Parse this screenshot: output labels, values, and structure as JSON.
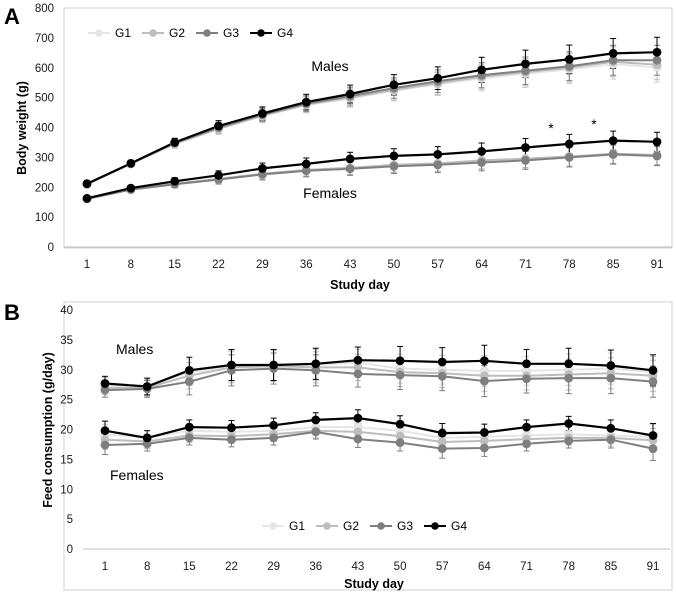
{
  "chart_data": [
    {
      "type": "line",
      "panel_label": "A",
      "ylabel": "Body weight (g)",
      "xlabel": "Study day",
      "ylim": [
        0,
        800
      ],
      "yticks": [
        0,
        100,
        200,
        300,
        400,
        500,
        600,
        700,
        800
      ],
      "categories": [
        "1",
        "8",
        "15",
        "22",
        "29",
        "36",
        "43",
        "50",
        "57",
        "64",
        "71",
        "78",
        "85",
        "91"
      ],
      "legend": {
        "placement": "top-left",
        "entries": [
          "G1",
          "G2",
          "G3",
          "G4"
        ]
      },
      "annotations": [
        {
          "text": "Males",
          "x": "50",
          "y": 600
        },
        {
          "text": "Females",
          "x": "43",
          "y": 180
        },
        {
          "text": "*",
          "x": "78",
          "y": 395
        },
        {
          "text": "*",
          "x": "85",
          "y": 405
        }
      ],
      "series": [
        {
          "name": "G1",
          "group": "Males",
          "color": "#e6e6e6",
          "values": [
            210,
            278,
            345,
            395,
            438,
            475,
            498,
            523,
            545,
            565,
            580,
            595,
            612,
            602
          ],
          "errors": [
            6,
            10,
            14,
            18,
            22,
            26,
            30,
            34,
            38,
            42,
            46,
            48,
            50,
            50
          ]
        },
        {
          "name": "G2",
          "group": "Males",
          "color": "#bdbdbd",
          "values": [
            210,
            278,
            345,
            396,
            440,
            477,
            500,
            526,
            548,
            570,
            585,
            600,
            620,
            610
          ],
          "errors": [
            6,
            10,
            14,
            18,
            22,
            26,
            30,
            34,
            38,
            42,
            46,
            48,
            50,
            50
          ]
        },
        {
          "name": "G3",
          "group": "Males",
          "color": "#7f7f7f",
          "values": [
            211,
            280,
            348,
            400,
            443,
            480,
            505,
            532,
            555,
            575,
            590,
            605,
            625,
            625
          ],
          "errors": [
            6,
            10,
            14,
            18,
            22,
            26,
            30,
            34,
            38,
            42,
            46,
            48,
            50,
            50
          ]
        },
        {
          "name": "G4",
          "group": "Males",
          "color": "#000000",
          "values": [
            212,
            280,
            350,
            405,
            447,
            485,
            512,
            543,
            565,
            593,
            613,
            628,
            648,
            652
          ],
          "errors": [
            6,
            10,
            14,
            18,
            22,
            26,
            30,
            34,
            38,
            42,
            46,
            48,
            50,
            50
          ]
        },
        {
          "name": "G1",
          "group": "Females",
          "color": "#e6e6e6",
          "values": [
            162,
            192,
            210,
            225,
            242,
            255,
            262,
            272,
            277,
            287,
            292,
            300,
            308,
            303
          ],
          "errors": [
            5,
            8,
            12,
            15,
            18,
            20,
            22,
            24,
            26,
            28,
            30,
            32,
            32,
            32
          ]
        },
        {
          "name": "G2",
          "group": "Females",
          "color": "#bdbdbd",
          "values": [
            162,
            193,
            212,
            228,
            245,
            258,
            265,
            275,
            280,
            290,
            296,
            303,
            312,
            308
          ],
          "errors": [
            5,
            8,
            12,
            15,
            18,
            20,
            22,
            24,
            26,
            28,
            30,
            32,
            32,
            32
          ]
        },
        {
          "name": "G3",
          "group": "Females",
          "color": "#7f7f7f",
          "values": [
            161,
            192,
            210,
            226,
            243,
            255,
            262,
            270,
            275,
            283,
            290,
            300,
            310,
            305
          ],
          "errors": [
            5,
            8,
            12,
            15,
            18,
            20,
            22,
            24,
            26,
            28,
            30,
            32,
            32,
            32
          ]
        },
        {
          "name": "G4",
          "group": "Females",
          "color": "#000000",
          "values": [
            163,
            197,
            220,
            240,
            263,
            278,
            295,
            305,
            310,
            320,
            333,
            345,
            356,
            352
          ],
          "errors": [
            5,
            8,
            12,
            15,
            18,
            20,
            22,
            24,
            26,
            28,
            30,
            32,
            32,
            32
          ]
        }
      ]
    },
    {
      "type": "line",
      "panel_label": "B",
      "ylabel": "Feed consumption (g/day)",
      "xlabel": "Study day",
      "ylim": [
        0,
        40
      ],
      "yticks": [
        0,
        5,
        10,
        15,
        20,
        25,
        30,
        35,
        40
      ],
      "categories": [
        "1",
        "8",
        "15",
        "22",
        "29",
        "36",
        "43",
        "50",
        "57",
        "64",
        "71",
        "78",
        "85",
        "91"
      ],
      "legend": {
        "placement": "bottom-center",
        "entries": [
          "G1",
          "G2",
          "G3",
          "G4"
        ]
      },
      "annotations": [
        {
          "text": "Males",
          "x": "1",
          "y": 33
        },
        {
          "text": "Females",
          "x": "1",
          "y": 13
        }
      ],
      "series": [
        {
          "name": "G1",
          "group": "Males",
          "color": "#e6e6e6",
          "values": [
            27.5,
            27.2,
            29.6,
            30.6,
            30.8,
            30.8,
            31.2,
            30.2,
            30.0,
            29.8,
            29.8,
            30.0,
            30.2,
            29.6
          ],
          "errors": [
            1.2,
            1.4,
            2.2,
            2.6,
            2.6,
            2.6,
            2.2,
            2.4,
            2.4,
            2.6,
            2.4,
            2.6,
            2.6,
            2.6
          ]
        },
        {
          "name": "G2",
          "group": "Males",
          "color": "#bdbdbd",
          "values": [
            27.0,
            27.0,
            29.0,
            30.4,
            30.6,
            30.4,
            30.4,
            29.6,
            29.4,
            29.0,
            29.0,
            29.2,
            29.4,
            29.0
          ],
          "errors": [
            1.2,
            1.4,
            2.2,
            2.6,
            2.6,
            2.6,
            2.2,
            2.4,
            2.4,
            2.6,
            2.4,
            2.6,
            2.6,
            2.6
          ]
        },
        {
          "name": "G3",
          "group": "Males",
          "color": "#7f7f7f",
          "values": [
            26.6,
            26.8,
            28.0,
            29.9,
            30.2,
            29.9,
            29.3,
            29.1,
            28.9,
            28.1,
            28.5,
            28.6,
            28.6,
            28.0
          ],
          "errors": [
            1.2,
            1.4,
            2.2,
            2.6,
            2.6,
            2.6,
            2.2,
            2.4,
            2.4,
            2.6,
            2.4,
            2.6,
            2.6,
            2.6
          ]
        },
        {
          "name": "G4",
          "group": "Males",
          "color": "#000000",
          "values": [
            27.7,
            27.2,
            29.9,
            30.8,
            30.8,
            31.0,
            31.6,
            31.5,
            31.3,
            31.5,
            31.0,
            31.0,
            30.7,
            29.9
          ],
          "errors": [
            1.2,
            1.4,
            2.2,
            2.6,
            2.6,
            2.6,
            2.2,
            2.4,
            2.4,
            2.6,
            2.4,
            2.6,
            2.6,
            2.6
          ]
        },
        {
          "name": "G1",
          "group": "Females",
          "color": "#e6e6e6",
          "values": [
            19.2,
            18.6,
            19.8,
            19.6,
            19.8,
            20.4,
            20.4,
            19.8,
            18.6,
            18.8,
            19.0,
            19.2,
            19.0,
            18.8
          ],
          "errors": [
            1.6,
            1.2,
            1.2,
            1.2,
            1.2,
            1.2,
            1.4,
            1.4,
            1.6,
            1.4,
            1.2,
            1.2,
            1.4,
            2.0
          ]
        },
        {
          "name": "G2",
          "group": "Females",
          "color": "#bdbdbd",
          "values": [
            18.3,
            18.0,
            19.0,
            18.9,
            19.2,
            19.8,
            19.6,
            18.9,
            17.9,
            18.1,
            18.4,
            18.6,
            18.6,
            18.2
          ],
          "errors": [
            1.6,
            1.2,
            1.2,
            1.2,
            1.2,
            1.2,
            1.4,
            1.4,
            1.6,
            1.4,
            1.2,
            1.2,
            1.4,
            2.0
          ]
        },
        {
          "name": "G3",
          "group": "Females",
          "color": "#7f7f7f",
          "values": [
            17.4,
            17.6,
            18.6,
            18.3,
            18.6,
            19.6,
            18.4,
            17.8,
            16.8,
            16.9,
            17.6,
            18.1,
            18.3,
            16.8
          ],
          "errors": [
            1.6,
            1.2,
            1.2,
            1.2,
            1.2,
            1.2,
            1.4,
            1.4,
            1.6,
            1.4,
            1.2,
            1.2,
            1.4,
            2.0
          ]
        },
        {
          "name": "G4",
          "group": "Females",
          "color": "#000000",
          "values": [
            19.8,
            18.6,
            20.4,
            20.3,
            20.7,
            21.6,
            21.9,
            20.9,
            19.4,
            19.5,
            20.4,
            21.0,
            20.2,
            19.0
          ],
          "errors": [
            1.6,
            1.2,
            1.2,
            1.2,
            1.2,
            1.2,
            1.4,
            1.4,
            1.6,
            1.4,
            1.2,
            1.2,
            1.4,
            2.0
          ]
        }
      ]
    }
  ]
}
